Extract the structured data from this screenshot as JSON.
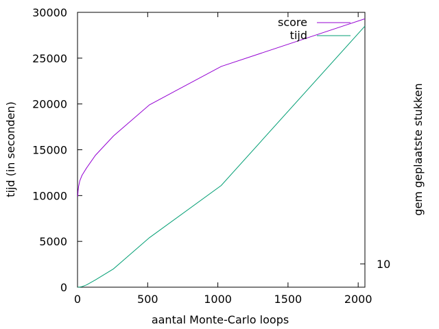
{
  "chart_data": {
    "type": "line",
    "title": "",
    "xlabel": "aantal Monte-Carlo loops",
    "ylabel": "tijd (in seconden)",
    "y2label": "gem geplaatste stukken",
    "xlim": [
      0,
      2048
    ],
    "ylim": [
      0,
      30000
    ],
    "xticks": [
      "0",
      "500",
      "1000",
      "1500",
      "2000"
    ],
    "yticks": [
      "0",
      "5000",
      "10000",
      "15000",
      "20000",
      "25000",
      "30000"
    ],
    "y2ticks": [
      "10"
    ],
    "y2tick_values": [
      10
    ],
    "legend_position": "top-right",
    "series": [
      {
        "name": "score",
        "color": "#9400d3",
        "x": [
          2,
          4,
          8,
          16,
          32,
          64,
          128,
          256,
          512,
          1024,
          2048
        ],
        "y": [
          9900,
          10500,
          11000,
          11600,
          12200,
          13000,
          14400,
          16500,
          19900,
          24100,
          29300
        ]
      },
      {
        "name": "tijd",
        "color": "#009e73",
        "x": [
          2,
          4,
          8,
          16,
          32,
          64,
          128,
          256,
          512,
          1024,
          2048
        ],
        "y": [
          2,
          4,
          8,
          16,
          60,
          250,
          800,
          2000,
          5400,
          11100,
          28500
        ]
      }
    ]
  }
}
